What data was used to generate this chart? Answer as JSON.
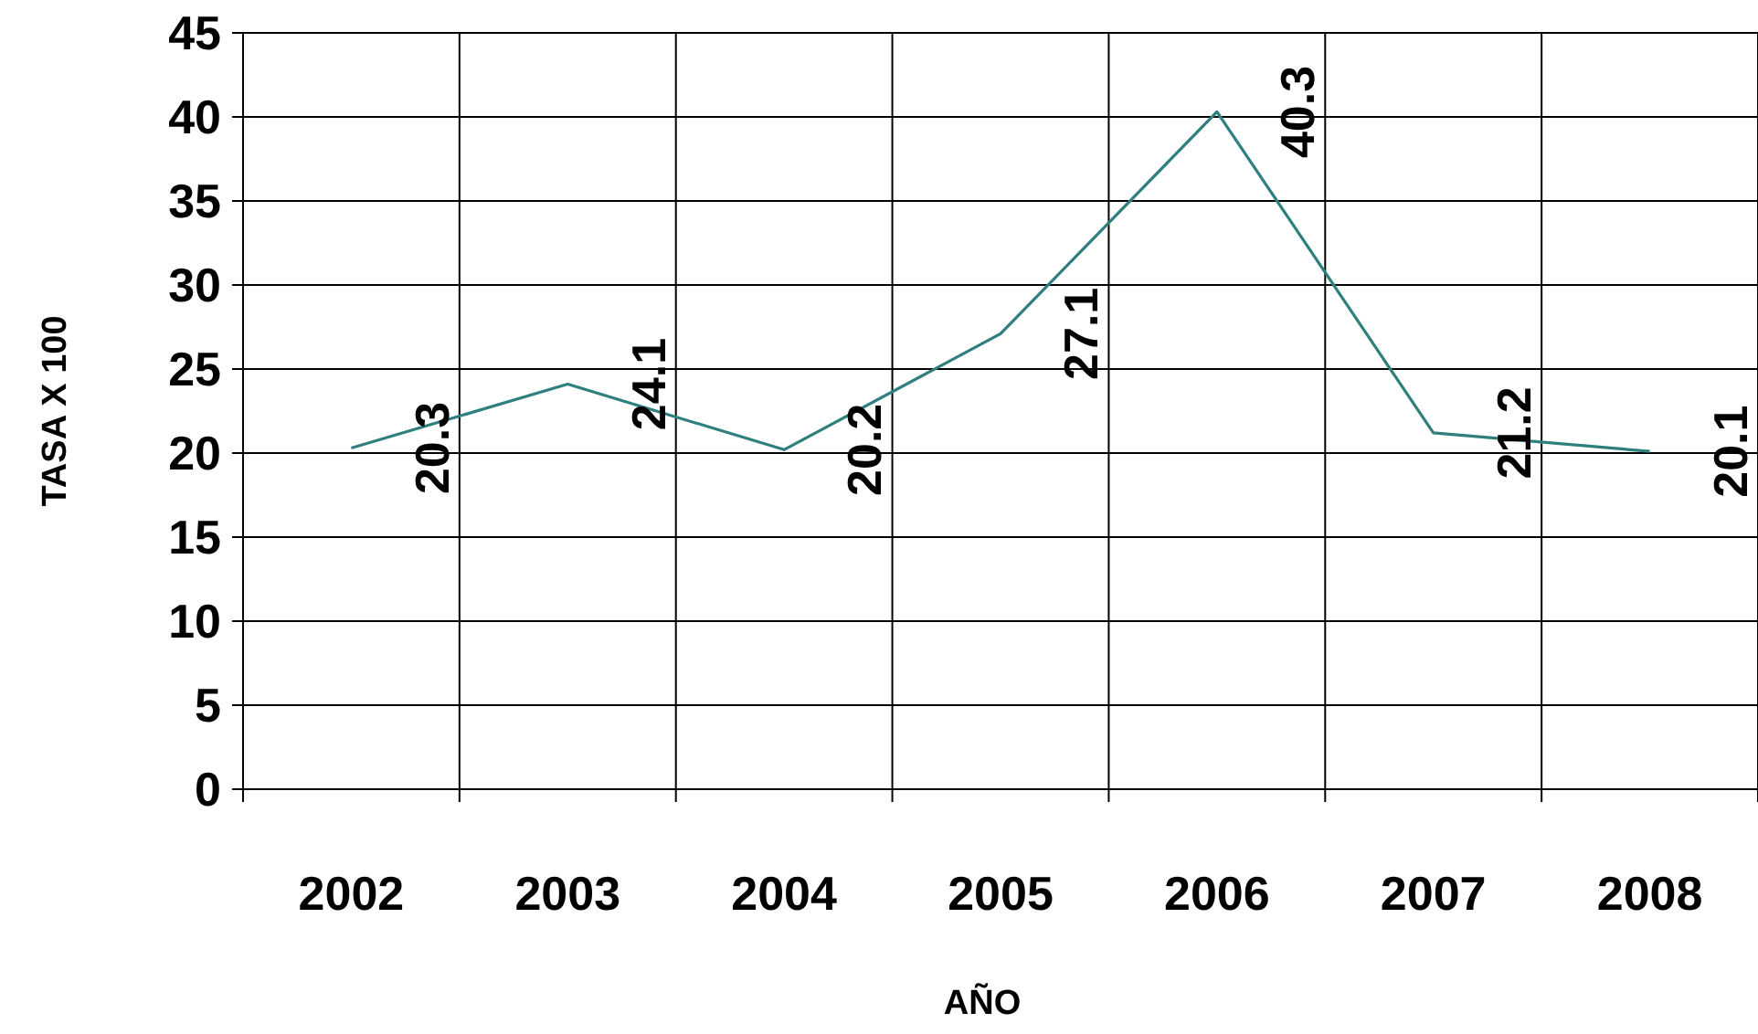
{
  "chart_data": {
    "type": "line",
    "xlabel": "AÑO",
    "ylabel": "TASA X 100",
    "categories": [
      "2002",
      "2003",
      "2004",
      "2005",
      "2006",
      "2007",
      "2008"
    ],
    "series": [
      {
        "color": "#2f7f7f",
        "values": [
          20.3,
          24.1,
          20.2,
          27.1,
          40.3,
          21.2,
          20.1
        ]
      }
    ],
    "ylim": [
      0,
      45
    ],
    "yticks": [
      0,
      5,
      10,
      15,
      20,
      25,
      30,
      35,
      40,
      45
    ],
    "grid": true,
    "data_labels": true,
    "marker": "none",
    "line_style": "solid"
  }
}
